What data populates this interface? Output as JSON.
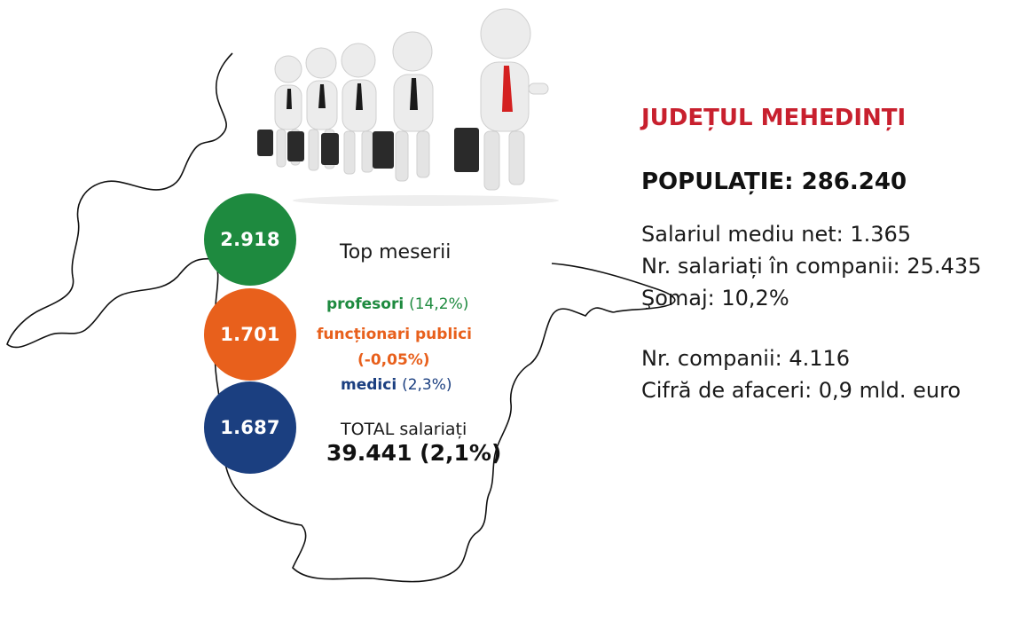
{
  "colors": {
    "red": "#c8202e",
    "green": "#1e8a3f",
    "orange": "#e8601c",
    "navy": "#1b3f80",
    "outline": "#111111",
    "figure": "#ececec",
    "tie_black": "#1a1a1a",
    "tie_red": "#d42020"
  },
  "county": {
    "title": "JUDEȚUL MEHEDINȚI",
    "population": "POPULAȚIE: 286.240"
  },
  "stats": [
    "Salariul mediu net: 1.365",
    "Nr. salariați în companii: 25.435",
    "Şomaj: 10,2%",
    "Nr. companii: 4.116",
    "Cifră de afaceri: 0,9 mld. euro"
  ],
  "top_jobs": {
    "heading": "Top meserii",
    "items": [
      {
        "value": "2.918",
        "name": "profesori",
        "change": "(14,2%)"
      },
      {
        "value": "1.701",
        "name": "funcționari publici",
        "change": "(-0,05%)"
      },
      {
        "value": "1.687",
        "name": "medici",
        "change": "(2,3%)"
      }
    ]
  },
  "total": {
    "label": "TOTAL salariați",
    "value": "39.441 (2,1%)"
  },
  "illustration": {
    "icon": "businessmen-walking-icon"
  }
}
